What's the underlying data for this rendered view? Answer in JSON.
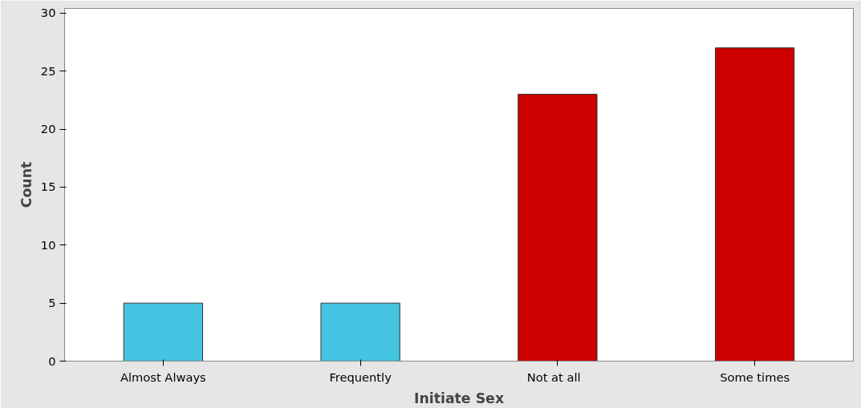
{
  "chart_data": {
    "type": "bar",
    "xlabel": "Initiate Sex",
    "ylabel": "Count",
    "categories": [
      "Almost Always",
      "Frequently",
      "Not  at  all",
      "Some times"
    ],
    "values": [
      5,
      5,
      23,
      27
    ],
    "colors": [
      "#44c4e0",
      "#44c4e0",
      "#cc0000",
      "#cc0000"
    ],
    "ylim": [
      0,
      30.4
    ],
    "yticks": [
      0,
      5,
      10,
      15,
      20,
      25,
      30
    ],
    "grid": false
  }
}
